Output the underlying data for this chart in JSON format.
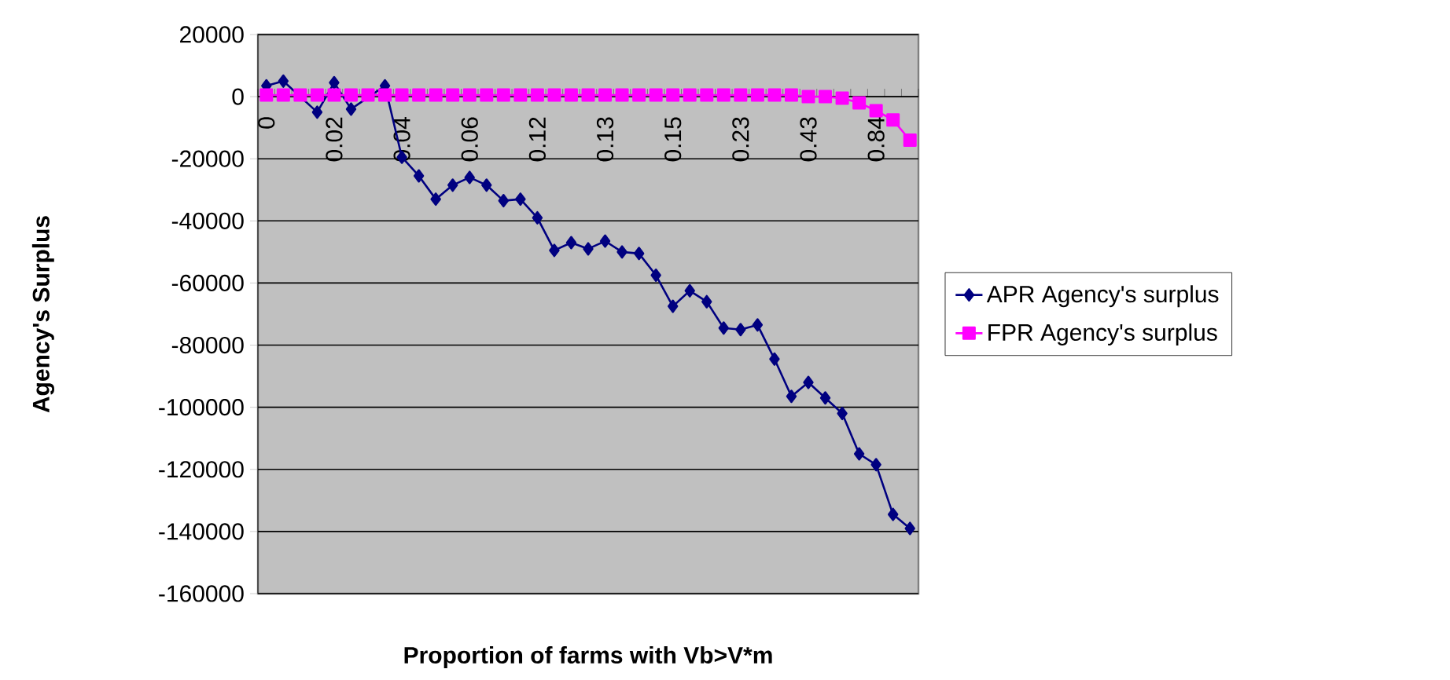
{
  "chart_data": {
    "type": "line",
    "xlabel": "Proportion of farms with Vb>V*m",
    "ylabel": "Agency's Surplus",
    "categories": [
      "0",
      null,
      null,
      null,
      "0.02",
      null,
      null,
      null,
      "0.04",
      null,
      null,
      null,
      "0.06",
      null,
      null,
      null,
      "0.12",
      null,
      null,
      null,
      "0.13",
      null,
      null,
      null,
      "0.15",
      null,
      null,
      null,
      "0.23",
      null,
      null,
      null,
      "0.43",
      null,
      null,
      null,
      "0.84",
      null,
      null
    ],
    "series": [
      {
        "name": "APR Agency's surplus",
        "color": "#000080",
        "marker": "diamond",
        "values": [
          3500,
          5000,
          null,
          -5000,
          4500,
          -4000,
          null,
          3500,
          -19500,
          -25500,
          -33000,
          -28500,
          -26000,
          -28500,
          -33500,
          -33000,
          -39000,
          -49500,
          -47000,
          -49000,
          -46500,
          -50000,
          -50500,
          -57500,
          -67500,
          -62500,
          -66000,
          -74500,
          -75000,
          -73500,
          -84500,
          -96500,
          -92000,
          -97000,
          -102000,
          -115000,
          -118500,
          -134500,
          -139000
        ]
      },
      {
        "name": "FPR Agency's surplus",
        "color": "#ff00ff",
        "marker": "square",
        "values": [
          500,
          500,
          500,
          500,
          500,
          500,
          500,
          500,
          500,
          500,
          500,
          500,
          500,
          500,
          500,
          500,
          500,
          500,
          500,
          500,
          500,
          500,
          500,
          500,
          500,
          500,
          500,
          500,
          500,
          500,
          500,
          500,
          0,
          0,
          -500,
          -2000,
          -4500,
          -7500,
          -14000
        ]
      }
    ],
    "ylim": [
      -160000,
      20000
    ],
    "yticks": [
      -160000,
      -140000,
      -120000,
      -100000,
      -80000,
      -60000,
      -40000,
      -20000,
      0,
      20000
    ],
    "grid": "y",
    "legend": "right"
  }
}
